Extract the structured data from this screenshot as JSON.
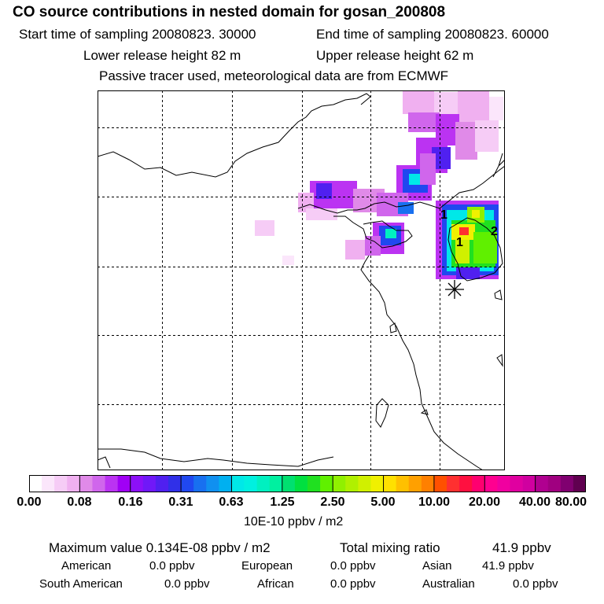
{
  "header": {
    "title": "CO  source contributions in nested domain for gosan_200808",
    "start_time": "Start time of sampling 20080823. 30000",
    "end_time": "End time of sampling 20080823. 60000",
    "lower_release": "Lower release height   82 m",
    "upper_release": "Upper release height   62 m",
    "tracer_note": "Passive tracer used, meteorological data are from ECMWF"
  },
  "map": {
    "receptor_labels": [
      "1",
      "1",
      "2"
    ],
    "colors": {
      "coast": "#000000",
      "grid": "#000000"
    }
  },
  "colorbar": {
    "labels": [
      "0.00",
      "0.08",
      "0.16",
      "0.31",
      "0.63",
      "1.25",
      "2.50",
      "5.00",
      "10.00",
      "20.00",
      "40.00",
      "80.00"
    ],
    "unit": "10E-10 ppbv / m2",
    "colors": [
      "#ffffff",
      "#fbe6fb",
      "#f6ccf6",
      "#f0b0f0",
      "#e08ae8",
      "#d066ec",
      "#bb33f2",
      "#a000f5",
      "#8c10f8",
      "#7018f8",
      "#5020f0",
      "#3030e8",
      "#2048f0",
      "#1870f0",
      "#1090f0",
      "#00b0f0",
      "#00e8e8",
      "#00f0e0",
      "#00f0c0",
      "#00f0a0",
      "#00e070",
      "#00e040",
      "#20e020",
      "#60f000",
      "#90f000",
      "#b0f000",
      "#d0f000",
      "#f0f000",
      "#ffe000",
      "#ffc000",
      "#ffa000",
      "#ff8000",
      "#ff5000",
      "#ff3030",
      "#ff1040",
      "#ff0070",
      "#ff0090",
      "#f000a0",
      "#e000a0",
      "#d000a0",
      "#b00090",
      "#a00080",
      "#800070",
      "#600050"
    ]
  },
  "stats": {
    "max_label": "Maximum value  0.134E-08 ppbv / m2",
    "total_label": "Total mixing ratio",
    "total_value": "41.9 ppbv",
    "sources": [
      {
        "name": "American",
        "value": "0.0 ppbv"
      },
      {
        "name": "European",
        "value": "0.0 ppbv"
      },
      {
        "name": "Asian",
        "value": "41.9 ppbv"
      },
      {
        "name": "South American",
        "value": "0.0 ppbv"
      },
      {
        "name": "African",
        "value": "0.0 ppbv"
      },
      {
        "name": "Australian",
        "value": "0.0 ppbv"
      }
    ]
  }
}
